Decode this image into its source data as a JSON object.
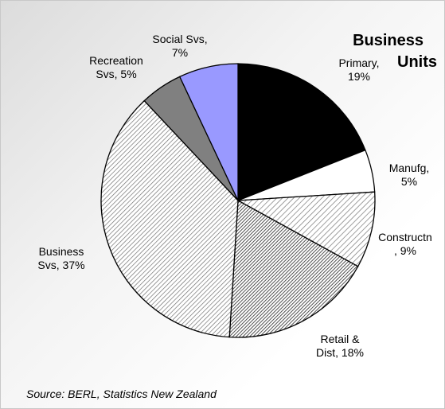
{
  "chart_data": {
    "type": "pie",
    "title_line1": "Business",
    "title_line2": "Units",
    "source": "Source: BERL, Statistics New Zealand",
    "slices": [
      {
        "name": "Primary",
        "value": 19,
        "label_lines": [
          "Primary,",
          "19%"
        ],
        "fill": "#000000",
        "pattern": "solid"
      },
      {
        "name": "Manufg",
        "value": 5,
        "label_lines": [
          "Manufg,",
          "5%"
        ],
        "fill": "#ffffff",
        "pattern": "solid"
      },
      {
        "name": "Constructn",
        "value": 9,
        "label_lines": [
          "Constructn",
          ", 9%"
        ],
        "fill": "#ffffff",
        "pattern": "light-hatch"
      },
      {
        "name": "Retail & Dist",
        "value": 18,
        "label_lines": [
          "Retail &",
          "Dist, 18%"
        ],
        "fill": "#777777",
        "pattern": "dense-hatch"
      },
      {
        "name": "Business Svs",
        "value": 37,
        "label_lines": [
          "Business",
          "Svs, 37%"
        ],
        "fill": "#ffffff",
        "pattern": "medium-hatch"
      },
      {
        "name": "Recreation Svs",
        "value": 5,
        "label_lines": [
          "Recreation",
          "Svs, 5%"
        ],
        "fill": "#808080",
        "pattern": "solid"
      },
      {
        "name": "Social Svs",
        "value": 7,
        "label_lines": [
          "Social Svs,",
          "7%"
        ],
        "fill": "#9999ff",
        "pattern": "solid"
      }
    ]
  }
}
